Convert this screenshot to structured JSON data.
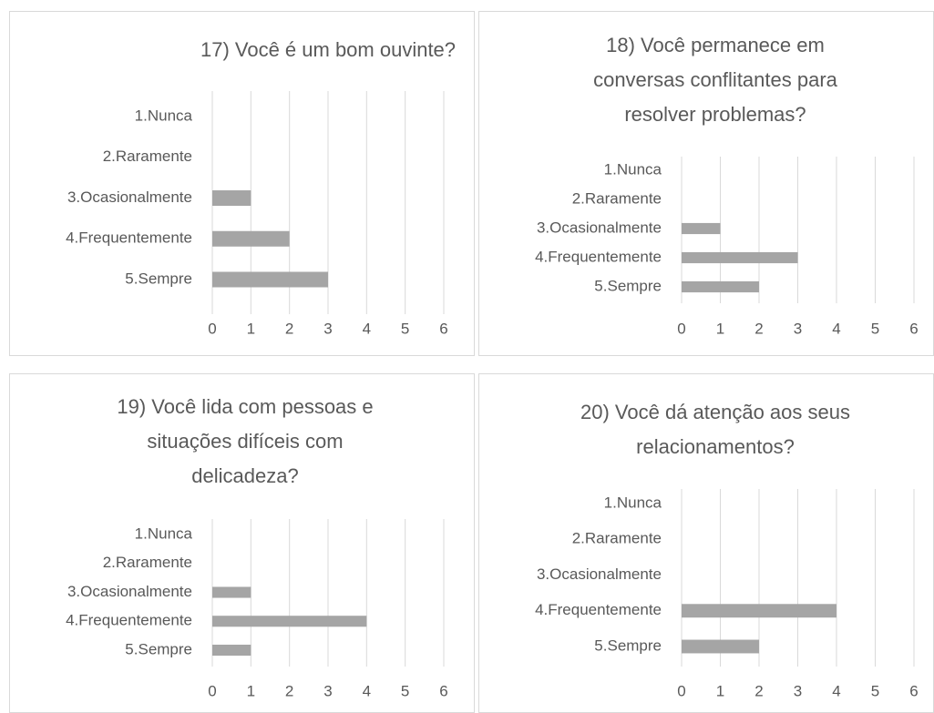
{
  "chart_data": [
    {
      "type": "bar",
      "orientation": "horizontal",
      "title": "17) Você é um bom ouvinte?",
      "categories": [
        "1.Nunca",
        "2.Raramente",
        "3.Ocasionalmente",
        "4.Frequentemente",
        "5.Sempre"
      ],
      "values": [
        0,
        0,
        1,
        2,
        3
      ],
      "color": "#a5a5a5",
      "xlim": [
        0,
        6
      ],
      "xticks": [
        0,
        1,
        2,
        3,
        4,
        5,
        6
      ],
      "grid": true
    },
    {
      "type": "bar",
      "orientation": "horizontal",
      "title": "18) Você permanece em conversas conflitantes para resolver problemas?",
      "categories": [
        "1.Nunca",
        "2.Raramente",
        "3.Ocasionalmente",
        "4.Frequentemente",
        "5.Sempre"
      ],
      "values": [
        0,
        0,
        1,
        3,
        2
      ],
      "color": "#a5a5a5",
      "xlim": [
        0,
        6
      ],
      "xticks": [
        0,
        1,
        2,
        3,
        4,
        5,
        6
      ],
      "grid": true
    },
    {
      "type": "bar",
      "orientation": "horizontal",
      "title": "19) Você lida com pessoas e situações difíceis com delicadeza?",
      "categories": [
        "1.Nunca",
        "2.Raramente",
        "3.Ocasionalmente",
        "4.Frequentemente",
        "5.Sempre"
      ],
      "values": [
        0,
        0,
        1,
        4,
        1
      ],
      "color": "#a5a5a5",
      "xlim": [
        0,
        6
      ],
      "xticks": [
        0,
        1,
        2,
        3,
        4,
        5,
        6
      ],
      "grid": true
    },
    {
      "type": "bar",
      "orientation": "horizontal",
      "title": "20) Você dá atenção aos seus relacionamentos?",
      "categories": [
        "1.Nunca",
        "2.Raramente",
        "3.Ocasionalmente",
        "4.Frequentemente",
        "5.Sempre"
      ],
      "values": [
        0,
        0,
        0,
        4,
        2
      ],
      "color": "#a5a5a5",
      "xlim": [
        0,
        6
      ],
      "xticks": [
        0,
        1,
        2,
        3,
        4,
        5,
        6
      ],
      "grid": true
    }
  ]
}
